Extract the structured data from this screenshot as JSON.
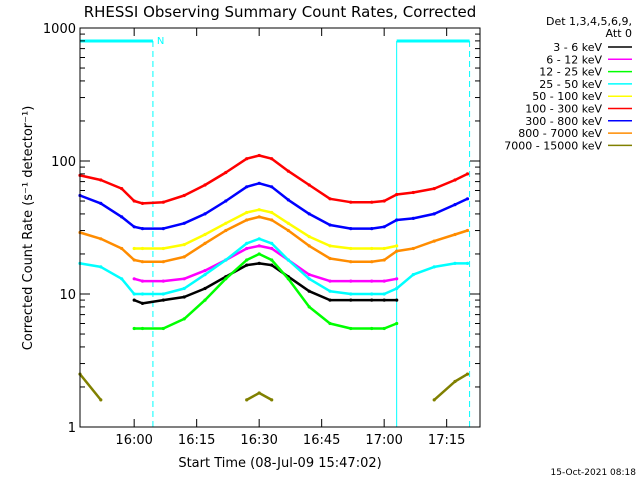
{
  "chart_data": {
    "type": "line",
    "title": "RHESSI Observing Summary Count Rates, Corrected",
    "xlabel": "Start Time (08-Jul-09 15:47:02)",
    "ylabel": "Corrected Count Rate (s⁻¹ detector⁻¹)",
    "yscale": "log",
    "ylim": [
      1,
      1000
    ],
    "xlim_minutes": [
      0,
      96
    ],
    "x_ticks": [
      {
        "label": "16:00",
        "minute": 13
      },
      {
        "label": "16:15",
        "minute": 28
      },
      {
        "label": "16:30",
        "minute": 43
      },
      {
        "label": "16:45",
        "minute": 58
      },
      {
        "label": "17:00",
        "minute": 73
      },
      {
        "label": "17:15",
        "minute": 88
      }
    ],
    "y_ticks": [
      {
        "label": "1",
        "value": 1
      },
      {
        "label": "10",
        "value": 10
      },
      {
        "label": "100",
        "value": 100
      },
      {
        "label": "1000",
        "value": 1000
      }
    ],
    "legend_header": [
      "Det 1,3,4,5,6,9,",
      "Att 0"
    ],
    "legend_position": "right",
    "night_marker": "N",
    "night_intervals_minutes": [
      [
        0,
        17.5
      ],
      [
        76,
        93.5
      ]
    ],
    "x_minutes": [
      0,
      5,
      10,
      13,
      15,
      20,
      25,
      30,
      35,
      40,
      43,
      46,
      50,
      55,
      60,
      65,
      70,
      73,
      76,
      80,
      85,
      90,
      93
    ],
    "series": [
      {
        "name": "3 - 6 keV",
        "color": "#000000",
        "values": [
          null,
          null,
          null,
          9,
          8.5,
          9,
          9.5,
          11,
          13.5,
          16.5,
          17,
          16.5,
          13.5,
          10.5,
          9,
          9,
          9,
          9,
          9,
          null,
          null,
          null,
          null
        ]
      },
      {
        "name": "6 - 12 keV",
        "color": "#ff00ff",
        "values": [
          null,
          null,
          null,
          13,
          12.5,
          12.5,
          13,
          15,
          18,
          22,
          23,
          22,
          18,
          14,
          12.5,
          12.5,
          12.5,
          12.5,
          13,
          null,
          null,
          null,
          null
        ]
      },
      {
        "name": "12 - 25 keV",
        "color": "#00ff00",
        "values": [
          null,
          null,
          null,
          5.5,
          5.5,
          5.5,
          6.5,
          9,
          13,
          18,
          20,
          18,
          13,
          8,
          6,
          5.5,
          5.5,
          5.5,
          6,
          null,
          null,
          null,
          null
        ]
      },
      {
        "name": "25 - 50 keV",
        "color": "#00ffff",
        "values": [
          17,
          16,
          13,
          10,
          10,
          10,
          11,
          14,
          18,
          24,
          26,
          24,
          18,
          13,
          10.5,
          10,
          10,
          10,
          11,
          14,
          16,
          17,
          17
        ]
      },
      {
        "name": "50 - 100 keV",
        "color": "#ffff00",
        "values": [
          null,
          null,
          null,
          22,
          22,
          22,
          23.5,
          28,
          34,
          41,
          43,
          41,
          34,
          27,
          23,
          22,
          22,
          22,
          23,
          null,
          null,
          null,
          null
        ]
      },
      {
        "name": "100 - 300 keV",
        "color": "#ff0000",
        "values": [
          78,
          72,
          62,
          50,
          48,
          49,
          55,
          66,
          82,
          104,
          110,
          104,
          84,
          66,
          52,
          49,
          49,
          50,
          56,
          58,
          62,
          72,
          80
        ]
      },
      {
        "name": "300 - 800 keV",
        "color": "#0000ff",
        "values": [
          55,
          48,
          38,
          32,
          31,
          31,
          34,
          40,
          50,
          64,
          68,
          64,
          51,
          40,
          33,
          31,
          31,
          32,
          36,
          37,
          40,
          47,
          52
        ]
      },
      {
        "name": "800 - 7000 keV",
        "color": "#ff8c00",
        "values": [
          29,
          26,
          22,
          18,
          17.5,
          17.5,
          19,
          24,
          30,
          36,
          38,
          36,
          30,
          23,
          18.5,
          17.5,
          17.5,
          18,
          21,
          22,
          25,
          28,
          30
        ]
      },
      {
        "name": "7000 - 15000 keV",
        "color": "#808000",
        "values": [
          2.5,
          1.6,
          null,
          null,
          null,
          null,
          null,
          null,
          null,
          1.6,
          1.8,
          1.6,
          null,
          null,
          null,
          null,
          null,
          null,
          null,
          null,
          1.6,
          2.2,
          2.5
        ]
      }
    ]
  },
  "footer_timestamp": "15-Oct-2021 08:18"
}
